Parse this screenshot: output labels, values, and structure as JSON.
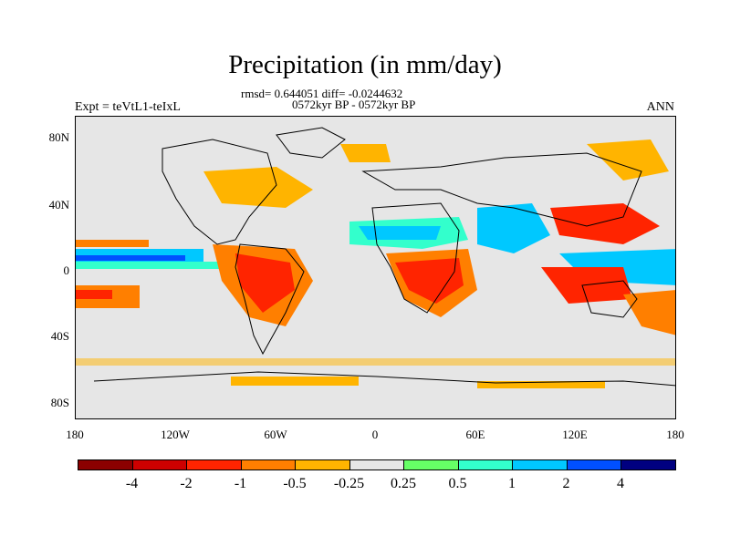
{
  "title": "Precipitation (in mm/day)",
  "stats": "rmsd= 0.644051 diff= -0.0244632",
  "period": "0572kyr BP - 0572kyr BP",
  "expt": "Expt = teVtL1-teIxL",
  "season": "ANN",
  "lat_labels": [
    "80N",
    "40N",
    "0",
    "40S",
    "80S"
  ],
  "lon_labels": [
    "180",
    "120W",
    "60W",
    "0",
    "60E",
    "120E",
    "180"
  ],
  "colorbar": {
    "colors": [
      "#8b0000",
      "#cd0000",
      "#ff2400",
      "#ff7f00",
      "#ffb400",
      "#e6e6e6",
      "#66ff66",
      "#33ffcc",
      "#00c8ff",
      "#0050ff",
      "#000080"
    ],
    "labels": [
      "-4",
      "-2",
      "-1",
      "-0.5",
      "-0.25",
      "0.25",
      "0.5",
      "1",
      "2",
      "4"
    ]
  }
}
